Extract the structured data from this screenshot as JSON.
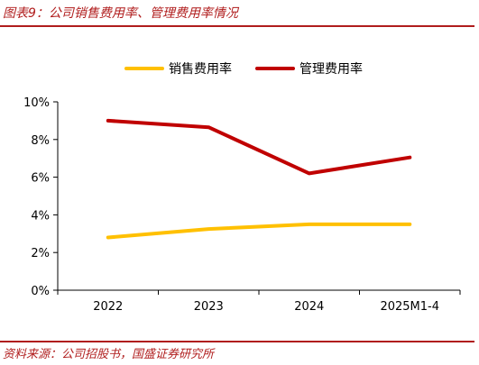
{
  "header": {
    "title": "图表9：公司销售费用率、管理费用率情况"
  },
  "footer": {
    "source": "资料来源：公司招股书，国盛证券研究所"
  },
  "chart_data": {
    "type": "line",
    "categories": [
      "2022",
      "2023",
      "2024",
      "2025M1-4"
    ],
    "series": [
      {
        "name": "销售费用率",
        "color": "#ffc000",
        "values": [
          2.8,
          3.25,
          3.5,
          3.5
        ]
      },
      {
        "name": "管理费用率",
        "color": "#c00000",
        "values": [
          9.0,
          8.65,
          6.2,
          7.05
        ]
      }
    ],
    "ylim": [
      0,
      10
    ],
    "yticks": [
      "0%",
      "2%",
      "4%",
      "6%",
      "8%",
      "10%"
    ],
    "legend_position": "top",
    "grid": false
  }
}
